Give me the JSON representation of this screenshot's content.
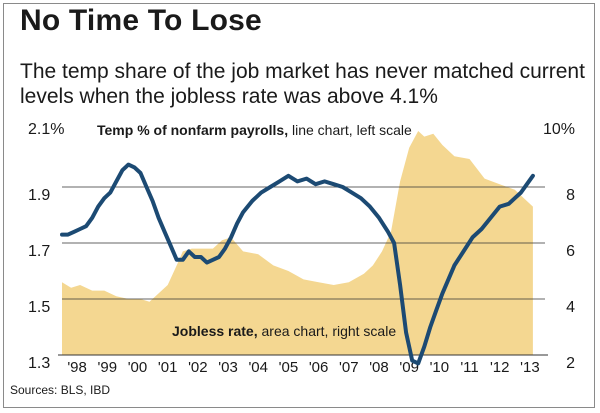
{
  "title": "No Time To Lose",
  "subtitle": "The temp share of the job market has never matched current levels when the jobless rate was above 4.1%",
  "source": "Sources: BLS, IBD",
  "colors": {
    "line": "#1c4a73",
    "area": "#f4d791",
    "text": "#1a1a1a",
    "grid": "#333333"
  },
  "chart_data": {
    "type": "line",
    "annotations": [
      {
        "bold": "Temp % of nonfarm payrolls,",
        "normal": " line chart, left scale"
      },
      {
        "bold": "Jobless rate,",
        "normal": " area chart, right scale"
      }
    ],
    "x_ticks": [
      "'98",
      "'99",
      "'00",
      "'01",
      "'02",
      "'03",
      "'04",
      "'05",
      "'06",
      "'07",
      "'08",
      "'09",
      "'10",
      "'11",
      "'12",
      "'13"
    ],
    "x_range": [
      1998.0,
      2014.0
    ],
    "left_axis": {
      "label": "Temp % of nonfarm payrolls",
      "ticks": [
        "2.1%",
        "1.9",
        "1.7",
        "1.5",
        "1.3"
      ],
      "tick_values": [
        2.1,
        1.9,
        1.7,
        1.5,
        1.3
      ],
      "range": [
        1.25,
        2.1
      ]
    },
    "right_axis": {
      "label": "Jobless rate",
      "ticks": [
        "10%",
        "8",
        "6",
        "4",
        "2"
      ],
      "tick_values": [
        10,
        8,
        6,
        4,
        2
      ],
      "range": [
        1.5,
        10
      ]
    },
    "series": [
      {
        "name": "Temp % of nonfarm payrolls",
        "chart": "line",
        "axis": "left",
        "x": [
          1998.0,
          1998.2,
          1998.4,
          1998.6,
          1998.8,
          1999.0,
          1999.2,
          1999.4,
          1999.6,
          1999.8,
          2000.0,
          2000.2,
          2000.4,
          2000.6,
          2000.8,
          2001.0,
          2001.2,
          2001.4,
          2001.6,
          2001.8,
          2002.0,
          2002.2,
          2002.4,
          2002.6,
          2002.8,
          2003.0,
          2003.2,
          2003.4,
          2003.6,
          2003.8,
          2004.0,
          2004.3,
          2004.6,
          2004.9,
          2005.2,
          2005.5,
          2005.8,
          2006.1,
          2006.4,
          2006.7,
          2007.0,
          2007.3,
          2007.6,
          2007.9,
          2008.2,
          2008.5,
          2008.8,
          2009.0,
          2009.2,
          2009.4,
          2009.6,
          2009.8,
          2010.0,
          2010.2,
          2010.4,
          2010.6,
          2010.8,
          2011.0,
          2011.3,
          2011.6,
          2011.9,
          2012.2,
          2012.5,
          2012.8,
          2013.0,
          2013.2,
          2013.4,
          2013.6
        ],
        "values": [
          1.73,
          1.73,
          1.74,
          1.75,
          1.76,
          1.79,
          1.83,
          1.86,
          1.88,
          1.92,
          1.96,
          1.98,
          1.97,
          1.95,
          1.9,
          1.85,
          1.79,
          1.74,
          1.69,
          1.64,
          1.64,
          1.67,
          1.65,
          1.65,
          1.63,
          1.64,
          1.65,
          1.68,
          1.72,
          1.77,
          1.81,
          1.85,
          1.88,
          1.9,
          1.92,
          1.94,
          1.92,
          1.93,
          1.91,
          1.92,
          1.91,
          1.9,
          1.88,
          1.86,
          1.83,
          1.79,
          1.74,
          1.7,
          1.55,
          1.38,
          1.28,
          1.27,
          1.33,
          1.4,
          1.46,
          1.52,
          1.57,
          1.62,
          1.67,
          1.72,
          1.75,
          1.79,
          1.83,
          1.84,
          1.86,
          1.88,
          1.91,
          1.94
        ]
      },
      {
        "name": "Jobless rate",
        "chart": "area",
        "axis": "right",
        "x": [
          1998.0,
          1998.3,
          1998.6,
          1999.0,
          1999.4,
          1999.8,
          2000.2,
          2000.6,
          2000.9,
          2001.2,
          2001.5,
          2001.8,
          2002.0,
          2002.3,
          2002.6,
          2003.0,
          2003.3,
          2003.6,
          2004.0,
          2004.5,
          2005.0,
          2005.5,
          2006.0,
          2006.5,
          2007.0,
          2007.5,
          2008.0,
          2008.3,
          2008.6,
          2008.9,
          2009.2,
          2009.5,
          2009.8,
          2010.0,
          2010.3,
          2010.6,
          2011.0,
          2011.5,
          2012.0,
          2012.5,
          2013.0,
          2013.3,
          2013.6
        ],
        "values": [
          4.6,
          4.4,
          4.5,
          4.3,
          4.3,
          4.1,
          4.0,
          4.0,
          3.9,
          4.2,
          4.5,
          5.2,
          5.7,
          5.8,
          5.8,
          5.8,
          6.1,
          6.2,
          5.7,
          5.6,
          5.2,
          5.0,
          4.7,
          4.6,
          4.5,
          4.6,
          4.9,
          5.2,
          5.7,
          6.4,
          8.2,
          9.4,
          10.0,
          9.8,
          9.9,
          9.5,
          9.1,
          9.0,
          8.3,
          8.1,
          7.9,
          7.6,
          7.3
        ]
      }
    ]
  }
}
